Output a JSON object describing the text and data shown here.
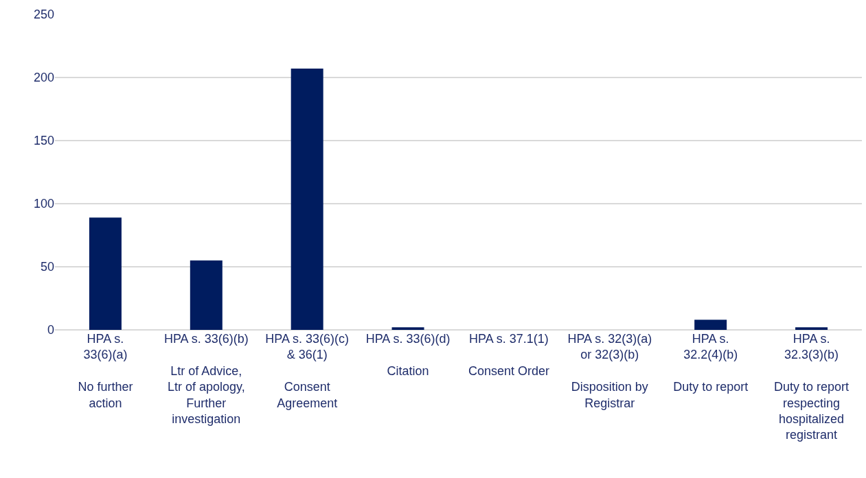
{
  "chart_data": {
    "type": "bar",
    "categories": [
      "HPA s.\n33(6)(a)\n\nNo further\naction",
      "HPA s. 33(6)(b)\n\nLtr of Advice,\nLtr of apology,\nFurther\ninvestigation",
      "HPA s. 33(6)(c)\n& 36(1)\n\nConsent\nAgreement",
      "HPA s. 33(6)(d)\n\nCitation",
      "HPA s. 37.1(1)\n\nConsent Order",
      "HPA s. 32(3)(a)\nor 32(3)(b)\n\nDisposition by\nRegistrar",
      "HPA s.\n32.2(4)(b)\n\nDuty to report",
      "HPA s.\n32.3(3)(b)\n\nDuty to report\nrespecting\nhospitalized\nregistrant"
    ],
    "values": [
      89,
      55,
      207,
      2,
      0,
      0,
      8,
      2
    ],
    "color": "#001c5f",
    "ylim": [
      0,
      250
    ],
    "yticks": [
      0,
      50,
      100,
      150,
      200,
      250
    ],
    "grid": "y"
  }
}
